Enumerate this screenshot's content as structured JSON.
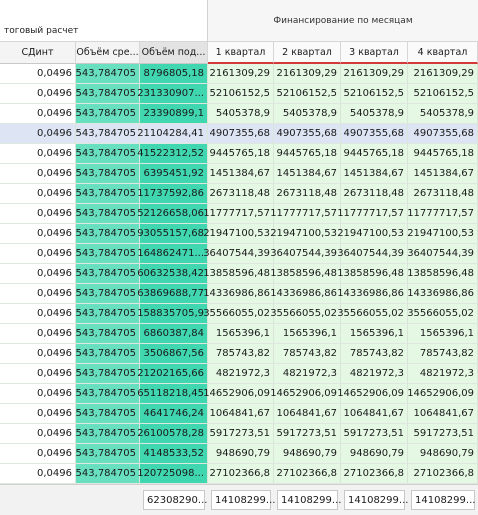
{
  "header": {
    "band_left_title": "тоговый расчет",
    "band_right_title": "Финансирование по месяцам",
    "columns": [
      "СДинт",
      "Объём сре...",
      "Объём под...",
      "1 квартал",
      "2 квартал",
      "3 квартал",
      "4 квартал"
    ]
  },
  "rows": [
    [
      "0,0496",
      "543,784705",
      "8796805,18",
      "2161309,29",
      "2161309,29",
      "2161309,29",
      "2161309,29"
    ],
    [
      "0,0496",
      "543,784705",
      "231330907...",
      "52106152,5",
      "52106152,5",
      "52106152,5",
      "52106152,5"
    ],
    [
      "0,0496",
      "543,784705",
      "23390899,1",
      "5405378,9",
      "5405378,9",
      "5405378,9",
      "5405378,9"
    ],
    [
      "0,0496",
      "543,784705",
      "21104284,41",
      "4907355,68",
      "4907355,68",
      "4907355,68",
      "4907355,68"
    ],
    [
      "0,0496",
      "543,784705",
      "41522312,52",
      "9445765,18",
      "9445765,18",
      "9445765,18",
      "9445765,18"
    ],
    [
      "0,0496",
      "543,784705",
      "6395451,92",
      "1451384,67",
      "1451384,67",
      "1451384,67",
      "1451384,67"
    ],
    [
      "0,0496",
      "543,784705",
      "11737592,86",
      "2673118,48",
      "2673118,48",
      "2673118,48",
      "2673118,48"
    ],
    [
      "0,0496",
      "543,784705",
      "52126658,06",
      "11777717,57",
      "11777717,57",
      "11777717,57",
      "11777717,57"
    ],
    [
      "0,0496",
      "543,784705",
      "93055157,68",
      "21947100,53",
      "21947100,53",
      "21947100,53",
      "21947100,53"
    ],
    [
      "0,0496",
      "543,784705",
      "164862471...",
      "36407544,39",
      "36407544,39",
      "36407544,39",
      "36407544,39"
    ],
    [
      "0,0496",
      "543,784705",
      "60632538,42",
      "13858596,48",
      "13858596,48",
      "13858596,48",
      "13858596,48"
    ],
    [
      "0,0496",
      "543,784705",
      "63869688,77",
      "14336986,86",
      "14336986,86",
      "14336986,86",
      "14336986,86"
    ],
    [
      "0,0496",
      "543,784705",
      "158835705,9",
      "35566055,02",
      "35566055,02",
      "35566055,02",
      "35566055,02"
    ],
    [
      "0,0496",
      "543,784705",
      "6860387,84",
      "1565396,1",
      "1565396,1",
      "1565396,1",
      "1565396,1"
    ],
    [
      "0,0496",
      "543,784705",
      "3506867,56",
      "785743,82",
      "785743,82",
      "785743,82",
      "785743,82"
    ],
    [
      "0,0496",
      "543,784705",
      "21202165,66",
      "4821972,3",
      "4821972,3",
      "4821972,3",
      "4821972,3"
    ],
    [
      "0,0496",
      "543,784705",
      "65118218,45",
      "14652906,09",
      "14652906,09",
      "14652906,09",
      "14652906,09"
    ],
    [
      "0,0496",
      "543,784705",
      "4641746,24",
      "1064841,67",
      "1064841,67",
      "1064841,67",
      "1064841,67"
    ],
    [
      "0,0496",
      "543,784705",
      "26100578,28",
      "5917273,51",
      "5917273,51",
      "5917273,51",
      "5917273,51"
    ],
    [
      "0,0496",
      "543,784705",
      "4148533,52",
      "948690,79",
      "948690,79",
      "948690,79",
      "948690,79"
    ],
    [
      "0,0496",
      "543,784705",
      "120725098...",
      "27102366,8",
      "27102366,8",
      "27102366,8",
      "27102366,8"
    ]
  ],
  "selected_row_index": 3,
  "footer": {
    "totals": [
      "",
      "",
      "62308290...",
      "14108299...",
      "14108299...",
      "14108299...",
      "14108299..."
    ]
  },
  "colors": {
    "accent": "#d23a3a",
    "volume_column": "#68e0c0",
    "volume_sub_column": "#3fd6b0",
    "quarter_cells": "#e4f8e4",
    "selected_row": "#dde4f4"
  }
}
